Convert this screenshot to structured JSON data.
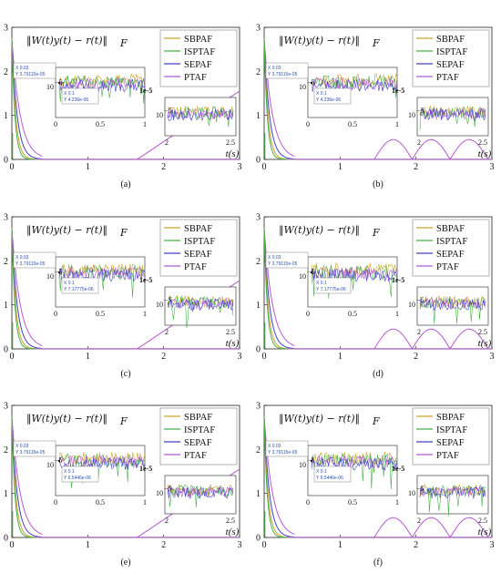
{
  "colors": {
    "SBPAF": "#c9a227",
    "ISPTAF": "#48b04a",
    "SEPAF": "#4040c8",
    "PTAF": "#b55ad0",
    "axis": "#222222",
    "tip": "#2a4fb0"
  },
  "common": {
    "title": "‖W(t)y(t) − r(t)‖",
    "title_sub": "F",
    "xlabel": "t(s)",
    "x_ticks": [
      "0",
      "1",
      "2",
      "3"
    ],
    "y_ticks": [
      "0",
      "1",
      "2",
      "3"
    ],
    "inset1_exp": "1e-5",
    "inset1_ylabel": "10",
    "inset1_ylabel_exp": "−5",
    "inset1_x_ticks": [
      "0",
      "0.5",
      "1"
    ],
    "inset2_ylabel": "10",
    "inset2_ylabel_exp": "−5",
    "inset2_x_ticks": [
      "2",
      "2.5"
    ],
    "tip_a_line1": "X 0.03",
    "tip_a_line2": "Y 3.79115e-05",
    "tip_b_line1": "X 0.1"
  },
  "chart_data": [
    {
      "type": "line",
      "caption": "(a)",
      "legend": [
        "SBPAF",
        "ISPTAF",
        "SEPAF",
        "PTAF"
      ],
      "tip_b_y": "Y 4.236e-06",
      "xlim": [
        0,
        3
      ],
      "ylim": [
        0,
        3
      ]
    },
    {
      "type": "line",
      "caption": "(b)",
      "legend": [
        "SBPAF",
        "ISPTAF",
        "SEPAF",
        "PTAF"
      ],
      "tip_b_y": "Y 4.236e-06",
      "xlim": [
        0,
        3
      ],
      "ylim": [
        0,
        3
      ]
    },
    {
      "type": "line",
      "caption": "(c)",
      "legend": [
        "SBPAF",
        "ISPTAF",
        "SEPAF",
        "PTAF"
      ],
      "tip_b_y": "Y 7.17775e-06",
      "xlim": [
        0,
        3
      ],
      "ylim": [
        0,
        3
      ]
    },
    {
      "type": "line",
      "caption": "(d)",
      "legend": [
        "SBPAF",
        "ISPTAF",
        "SEPAF",
        "PTAF"
      ],
      "tip_b_y": "Y 7.17775e-06",
      "xlim": [
        0,
        3
      ],
      "ylim": [
        0,
        3
      ]
    },
    {
      "type": "line",
      "caption": "(e)",
      "legend": [
        "SBPAF",
        "ISPTAF",
        "SEPAF",
        "PTAF"
      ],
      "tip_b_y": "Y 6.5446e-06",
      "xlim": [
        0,
        3
      ],
      "ylim": [
        0,
        3
      ]
    },
    {
      "type": "line",
      "caption": "(f)",
      "legend": [
        "SBPAF",
        "ISPTAF",
        "SEPAF",
        "PTAF"
      ],
      "tip_b_y": "Y 6.5446e-06",
      "xlim": [
        0,
        3
      ],
      "ylim": [
        0,
        3
      ]
    }
  ]
}
